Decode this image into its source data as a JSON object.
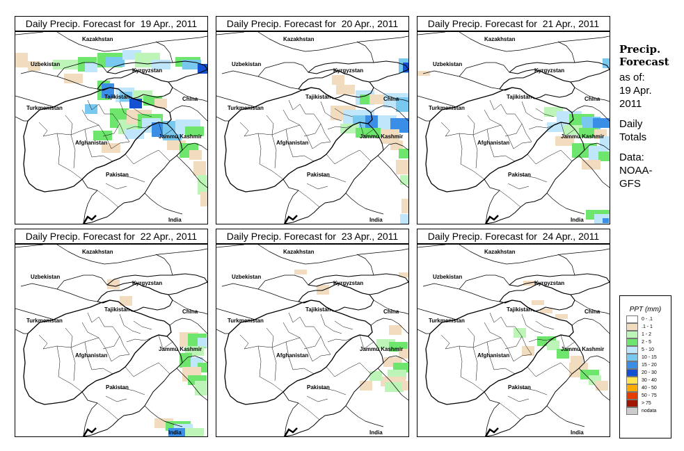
{
  "panels": [
    {
      "title": "Daily Precip. Forecast for  19 Apr., 2011",
      "precip": "p19"
    },
    {
      "title": "Daily Precip. Forecast for  20 Apr., 2011",
      "precip": "p20"
    },
    {
      "title": "Daily Precip. Forecast for  21 Apr., 2011",
      "precip": "p21"
    },
    {
      "title": "Daily Precip. Forecast for  22 Apr., 2011",
      "precip": "p22"
    },
    {
      "title": "Daily Precip. Forecast for  23 Apr., 2011",
      "precip": "p23"
    },
    {
      "title": "Daily Precip. Forecast for  24 Apr., 2011",
      "precip": "p24"
    }
  ],
  "map_labels": {
    "kazakhstan": "Kazakhstan",
    "uzbekistan": "Uzbekistan",
    "kyrgyzstan": "Kyrgyzstan",
    "tajikistan": "Tajikistan",
    "turkmenistan": "Turkmenistan",
    "china": "China",
    "afghanistan": "Afghanistan",
    "jammu_kashmir": "Jammu Kashmir",
    "pakistan": "Pakistan",
    "india": "India"
  },
  "side": {
    "heading1": "Precip.",
    "heading2": "Forecast",
    "as_of_1": "as of:",
    "as_of_2": "19 Apr.",
    "as_of_3": "2011",
    "totals_1": "Daily",
    "totals_2": "Totals",
    "data_1": "Data:",
    "data_2": "NOAA-",
    "data_3": "GFS"
  },
  "legend": {
    "title": "PPT (mm)",
    "items": [
      {
        "label": "0 - .1",
        "color": "#ffffff"
      },
      {
        "label": ".1 - 1",
        "color": "#f2dcc0"
      },
      {
        "label": "1 - 2",
        "color": "#bdf5b8"
      },
      {
        "label": "2 - 5",
        "color": "#6ee66e"
      },
      {
        "label": "5 - 10",
        "color": "#bfe6fa"
      },
      {
        "label": "10 - 15",
        "color": "#78c8f0"
      },
      {
        "label": "15 - 20",
        "color": "#3a8ee6"
      },
      {
        "label": "20 - 30",
        "color": "#1450d2"
      },
      {
        "label": "30 - 40",
        "color": "#ffe650"
      },
      {
        "label": "40 - 50",
        "color": "#ffaa00"
      },
      {
        "label": "50 - 75",
        "color": "#e63c00"
      },
      {
        "label": "> 75",
        "color": "#a01400"
      },
      {
        "label": "nodata",
        "color": "#cccccc"
      }
    ]
  }
}
